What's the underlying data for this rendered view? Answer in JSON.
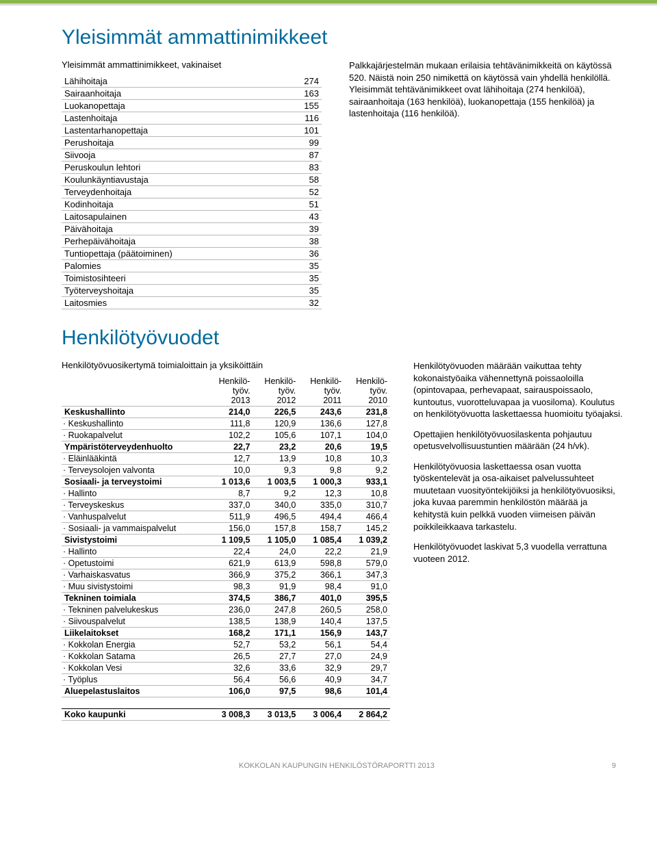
{
  "topbar_colors": {
    "green": "#8ab84a",
    "gray": "#d8d8d8"
  },
  "heading_color": "#006a9c",
  "section1": {
    "title": "Yleisimmät ammattinimikkeet",
    "subtitle": "Yleisimmät ammattinimikkeet, vakinaiset",
    "rows": [
      [
        "Lähihoitaja",
        "274"
      ],
      [
        "Sairaanhoitaja",
        "163"
      ],
      [
        "Luokanopettaja",
        "155"
      ],
      [
        "Lastenhoitaja",
        "116"
      ],
      [
        "Lastentarhanopettaja",
        "101"
      ],
      [
        "Perushoitaja",
        "99"
      ],
      [
        "Siivooja",
        "87"
      ],
      [
        "Peruskoulun lehtori",
        "83"
      ],
      [
        "Koulunkäyntiavustaja",
        "58"
      ],
      [
        "Terveydenhoitaja",
        "52"
      ],
      [
        "Kodinhoitaja",
        "51"
      ],
      [
        "Laitosapulainen",
        "43"
      ],
      [
        "Päivähoitaja",
        "39"
      ],
      [
        "Perhepäivähoitaja",
        "38"
      ],
      [
        "Tuntiopettaja (päätoiminen)",
        "36"
      ],
      [
        "Palomies",
        "35"
      ],
      [
        "Toimistosihteeri",
        "35"
      ],
      [
        "Työterveyshoitaja",
        "35"
      ],
      [
        "Laitosmies",
        "32"
      ]
    ],
    "para": "Palkkajärjestelmän mukaan erilaisia tehtävänimikkeitä on käytössä 520. Näistä noin 250 nimikettä on käytössä vain yhdellä henkilöllä. Yleisimmät tehtävänimikkeet ovat lähihoitaja (274 henkilöä), sairaanhoitaja (163 henkilöä), luokanopettaja (155 henkilöä) ja lastenhoitaja (116 henkilöä)."
  },
  "section2": {
    "title": "Henkilötyövuodet",
    "subtitle": "Henkilötyövuosikertymä toimialoittain ja yksiköittäin",
    "header": [
      "",
      "Henkilö-\ntyöv.\n2013",
      "Henkilö-\ntyöv.\n2012",
      "Henkilö-\ntyöv.\n2011",
      "Henkilö-\ntyöv.\n2010"
    ],
    "h1": "Henkilö-",
    "h2": "työv.",
    "years": [
      "2013",
      "2012",
      "2011",
      "2010"
    ],
    "rows": [
      {
        "bold": true,
        "cells": [
          "Keskushallinto",
          "214,0",
          "226,5",
          "243,6",
          "231,8"
        ]
      },
      {
        "bold": false,
        "cells": [
          "· Keskushallinto",
          "111,8",
          "120,9",
          "136,6",
          "127,8"
        ]
      },
      {
        "bold": false,
        "cells": [
          "· Ruokapalvelut",
          "102,2",
          "105,6",
          "107,1",
          "104,0"
        ]
      },
      {
        "bold": true,
        "cells": [
          "Ympäristöterveydenhuolto",
          "22,7",
          "23,2",
          "20,6",
          "19,5"
        ]
      },
      {
        "bold": false,
        "cells": [
          "· Eläinlääkintä",
          "12,7",
          "13,9",
          "10,8",
          "10,3"
        ]
      },
      {
        "bold": false,
        "cells": [
          "· Terveysolojen valvonta",
          "10,0",
          "9,3",
          "9,8",
          "9,2"
        ]
      },
      {
        "bold": true,
        "cells": [
          "Sosiaali- ja terveystoimi",
          "1 013,6",
          "1 003,5",
          "1 000,3",
          "933,1"
        ]
      },
      {
        "bold": false,
        "cells": [
          "· Hallinto",
          "8,7",
          "9,2",
          "12,3",
          "10,8"
        ]
      },
      {
        "bold": false,
        "cells": [
          "· Terveyskeskus",
          "337,0",
          "340,0",
          "335,0",
          "310,7"
        ]
      },
      {
        "bold": false,
        "cells": [
          "· Vanhuspalvelut",
          "511,9",
          "496,5",
          "494,4",
          "466,4"
        ]
      },
      {
        "bold": false,
        "cells": [
          "· Sosiaali- ja vammaispalvelut",
          "156,0",
          "157,8",
          "158,7",
          "145,2"
        ]
      },
      {
        "bold": true,
        "cells": [
          "Sivistystoimi",
          "1 109,5",
          "1 105,0",
          "1 085,4",
          "1 039,2"
        ]
      },
      {
        "bold": false,
        "cells": [
          "· Hallinto",
          "22,4",
          "24,0",
          "22,2",
          "21,9"
        ]
      },
      {
        "bold": false,
        "cells": [
          "· Opetustoimi",
          "621,9",
          "613,9",
          "598,8",
          "579,0"
        ]
      },
      {
        "bold": false,
        "cells": [
          "· Varhaiskasvatus",
          "366,9",
          "375,2",
          "366,1",
          "347,3"
        ]
      },
      {
        "bold": false,
        "cells": [
          "· Muu sivistystoimi",
          "98,3",
          "91,9",
          "98,4",
          "91,0"
        ]
      },
      {
        "bold": true,
        "cells": [
          "Tekninen toimiala",
          "374,5",
          "386,7",
          "401,0",
          "395,5"
        ]
      },
      {
        "bold": false,
        "cells": [
          "· Tekninen palvelukeskus",
          "236,0",
          "247,8",
          "260,5",
          "258,0"
        ]
      },
      {
        "bold": false,
        "cells": [
          "· Siivouspalvelut",
          "138,5",
          "138,9",
          "140,4",
          "137,5"
        ]
      },
      {
        "bold": true,
        "cells": [
          "Liikelaitokset",
          "168,2",
          "171,1",
          "156,9",
          "143,7"
        ]
      },
      {
        "bold": false,
        "cells": [
          "· Kokkolan Energia",
          "52,7",
          "53,2",
          "56,1",
          "54,4"
        ]
      },
      {
        "bold": false,
        "cells": [
          "· Kokkolan Satama",
          "26,5",
          "27,7",
          "27,0",
          "24,9"
        ]
      },
      {
        "bold": false,
        "cells": [
          "· Kokkolan Vesi",
          "32,6",
          "33,6",
          "32,9",
          "29,7"
        ]
      },
      {
        "bold": false,
        "cells": [
          "· Työplus",
          "56,4",
          "56,6",
          "40,9",
          "34,7"
        ]
      },
      {
        "bold": true,
        "cells": [
          "Aluepelastuslaitos",
          "106,0",
          "97,5",
          "98,6",
          "101,4"
        ]
      }
    ],
    "total": {
      "cells": [
        "Koko kaupunki",
        "3 008,3",
        "3 013,5",
        "3 006,4",
        "2 864,2"
      ]
    },
    "paras": [
      "Henkilötyövuoden määrään vaikuttaa tehty kokonaistyöaika vähennettynä poissaoloilla (opintovapaa, perhevapaat, sairauspoissaolo, kuntoutus, vuorotteluvapaa ja vuosiloma). Koulutus on henkilötyövuotta laskettaessa huomioitu työajaksi.",
      "Opettajien henkilötyövuosilaskenta pohjautuu opetusvelvollisuustuntien määrään (24 h/vk).",
      "Henkilötyövuosia laskettaessa osan vuotta työskentelevät ja osa-aikaiset palvelussuhteet muutetaan vuosityöntekijöiksi ja henkilötyövuosiksi, joka kuvaa paremmin henkilöstön määrää ja kehitystä kuin pelkkä vuoden viimeisen päivän poikkileikkaava tarkastelu.",
      "Henkilötyövuodet laskivat 5,3 vuodella verrattuna vuoteen 2012."
    ]
  },
  "footer": {
    "text": "KOKKOLAN KAUPUNGIN HENKILÖSTÖRAPORTTI 2013",
    "page": "9"
  }
}
